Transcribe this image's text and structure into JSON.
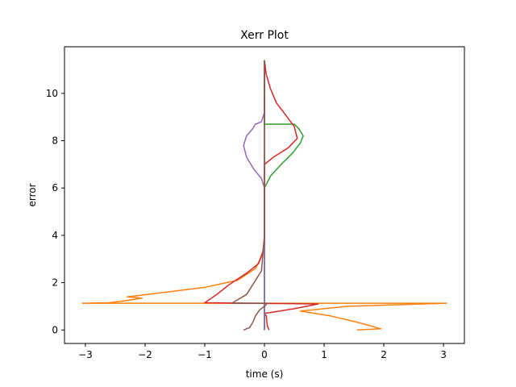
{
  "chart_data": {
    "type": "line",
    "title": "Xerr Plot",
    "xlabel": "time (s)",
    "ylabel": "error",
    "xlim": [
      -3.35,
      3.35
    ],
    "ylim": [
      -0.57,
      11.97
    ],
    "xticks": [
      -3,
      -2,
      -1,
      0,
      1,
      2,
      3
    ],
    "xtick_labels": [
      "−3",
      "−2",
      "−1",
      "0",
      "1",
      "2",
      "3"
    ],
    "yticks": [
      0,
      2,
      4,
      6,
      8,
      10
    ],
    "ytick_labels": [
      "0",
      "2",
      "4",
      "6",
      "8",
      "10"
    ],
    "grid": false,
    "legend": false,
    "series": [
      {
        "color": "#1f77b4",
        "points": [
          [
            0.0,
            0.0
          ],
          [
            0.0,
            11.4
          ]
        ]
      },
      {
        "color": "#ff7f0e",
        "points": [
          [
            1.55,
            0.0
          ],
          [
            1.95,
            0.05
          ],
          [
            1.6,
            0.3
          ],
          [
            1.1,
            0.6
          ],
          [
            0.6,
            0.8
          ],
          [
            1.4,
            1.0
          ],
          [
            3.05,
            1.13
          ],
          [
            -3.05,
            1.13
          ],
          [
            -2.6,
            1.15
          ],
          [
            -2.3,
            1.25
          ],
          [
            -2.05,
            1.35
          ],
          [
            -2.3,
            1.4
          ],
          [
            -1.8,
            1.55
          ],
          [
            -1.0,
            1.8
          ],
          [
            -0.45,
            2.1
          ],
          [
            -0.15,
            2.6
          ],
          [
            -0.03,
            3.2
          ],
          [
            0.0,
            4.0
          ],
          [
            0.0,
            11.4
          ]
        ]
      },
      {
        "color": "#2ca02c",
        "points": [
          [
            0.0,
            0.0
          ],
          [
            0.0,
            6.0
          ],
          [
            0.1,
            6.5
          ],
          [
            0.28,
            7.0
          ],
          [
            0.48,
            7.5
          ],
          [
            0.6,
            7.9
          ],
          [
            0.65,
            8.2
          ],
          [
            0.58,
            8.5
          ],
          [
            0.5,
            8.7
          ],
          [
            0.0,
            8.7
          ],
          [
            0.0,
            11.4
          ]
        ]
      },
      {
        "color": "#d62728",
        "points": [
          [
            0.08,
            0.0
          ],
          [
            0.05,
            0.15
          ],
          [
            0.03,
            0.6
          ],
          [
            0.0,
            0.7
          ],
          [
            0.5,
            0.9
          ],
          [
            0.9,
            1.1
          ],
          [
            -1.0,
            1.15
          ],
          [
            -0.8,
            1.5
          ],
          [
            -0.6,
            1.9
          ],
          [
            -0.3,
            2.4
          ],
          [
            -0.1,
            2.8
          ],
          [
            0.0,
            3.5
          ],
          [
            0.0,
            7.0
          ],
          [
            0.15,
            7.3
          ],
          [
            0.4,
            7.7
          ],
          [
            0.55,
            8.1
          ],
          [
            0.5,
            8.6
          ],
          [
            0.35,
            9.1
          ],
          [
            0.2,
            9.6
          ],
          [
            0.1,
            10.2
          ],
          [
            0.03,
            10.8
          ],
          [
            0.0,
            11.4
          ]
        ]
      },
      {
        "color": "#9467bd",
        "points": [
          [
            0.0,
            0.0
          ],
          [
            0.0,
            6.0
          ],
          [
            -0.05,
            6.4
          ],
          [
            -0.18,
            6.8
          ],
          [
            -0.3,
            7.3
          ],
          [
            -0.35,
            7.8
          ],
          [
            -0.3,
            8.2
          ],
          [
            -0.2,
            8.5
          ],
          [
            -0.15,
            8.7
          ],
          [
            -0.05,
            8.8
          ],
          [
            0.0,
            9.2
          ],
          [
            0.0,
            11.4
          ]
        ]
      },
      {
        "color": "#8c564b",
        "points": [
          [
            -0.35,
            0.0
          ],
          [
            -0.25,
            0.1
          ],
          [
            -0.2,
            0.3
          ],
          [
            -0.15,
            0.6
          ],
          [
            -0.08,
            0.85
          ],
          [
            0.0,
            1.0
          ],
          [
            0.05,
            1.13
          ],
          [
            -0.55,
            1.13
          ],
          [
            -0.3,
            1.5
          ],
          [
            -0.05,
            2.5
          ],
          [
            0.0,
            4.0
          ],
          [
            0.0,
            11.4
          ]
        ]
      }
    ]
  }
}
